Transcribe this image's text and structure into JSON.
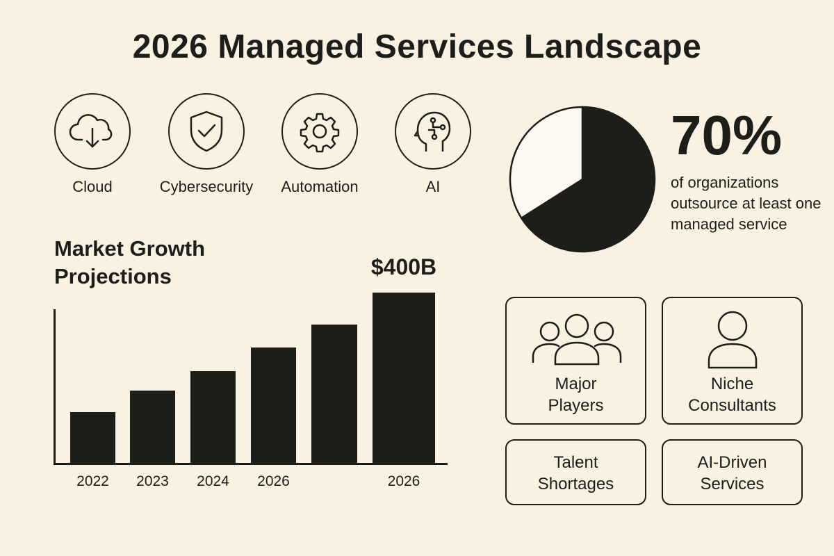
{
  "title": "2026 Managed Services Landscape",
  "categories": [
    {
      "label": "Cloud",
      "icon": "cloud-download-icon"
    },
    {
      "label": "Cybersecurity",
      "icon": "shield-check-icon"
    },
    {
      "label": "Automation",
      "icon": "gear-icon"
    },
    {
      "label": "AI",
      "icon": "ai-head-icon"
    }
  ],
  "stat": {
    "value": "70%",
    "description": "of organizations outsource at least one managed service"
  },
  "boxes": [
    {
      "label_line1": "Major",
      "label_line2": "Players",
      "icon": "group-people-icon"
    },
    {
      "label_line1": "Niche",
      "label_line2": "Consultants",
      "icon": "person-icon"
    },
    {
      "label_line1": "Talent",
      "label_line2": "Shortages"
    },
    {
      "label_line1": "AI-Driven",
      "label_line2": "Services"
    }
  ],
  "colors": {
    "background": "#f9f2e3",
    "ink": "#1d1d1a",
    "pie_light": "#fdf9f0"
  },
  "chart_data": [
    {
      "type": "bar",
      "title": "Market Growth Projections",
      "categories": [
        "2022",
        "2023",
        "2024",
        "2026",
        "",
        "2026"
      ],
      "values": [
        120,
        170,
        216,
        271,
        325,
        400
      ],
      "data_labels": [
        "",
        "",
        "",
        "",
        "",
        "$400B"
      ],
      "unit": "$B",
      "ylim": [
        0,
        400
      ],
      "grid": false,
      "color": "#1d1d1a"
    },
    {
      "type": "pie",
      "slices": [
        {
          "value": 66,
          "color": "#1d1d1a"
        },
        {
          "value": 34,
          "color": "#fdf9f0"
        }
      ]
    }
  ]
}
